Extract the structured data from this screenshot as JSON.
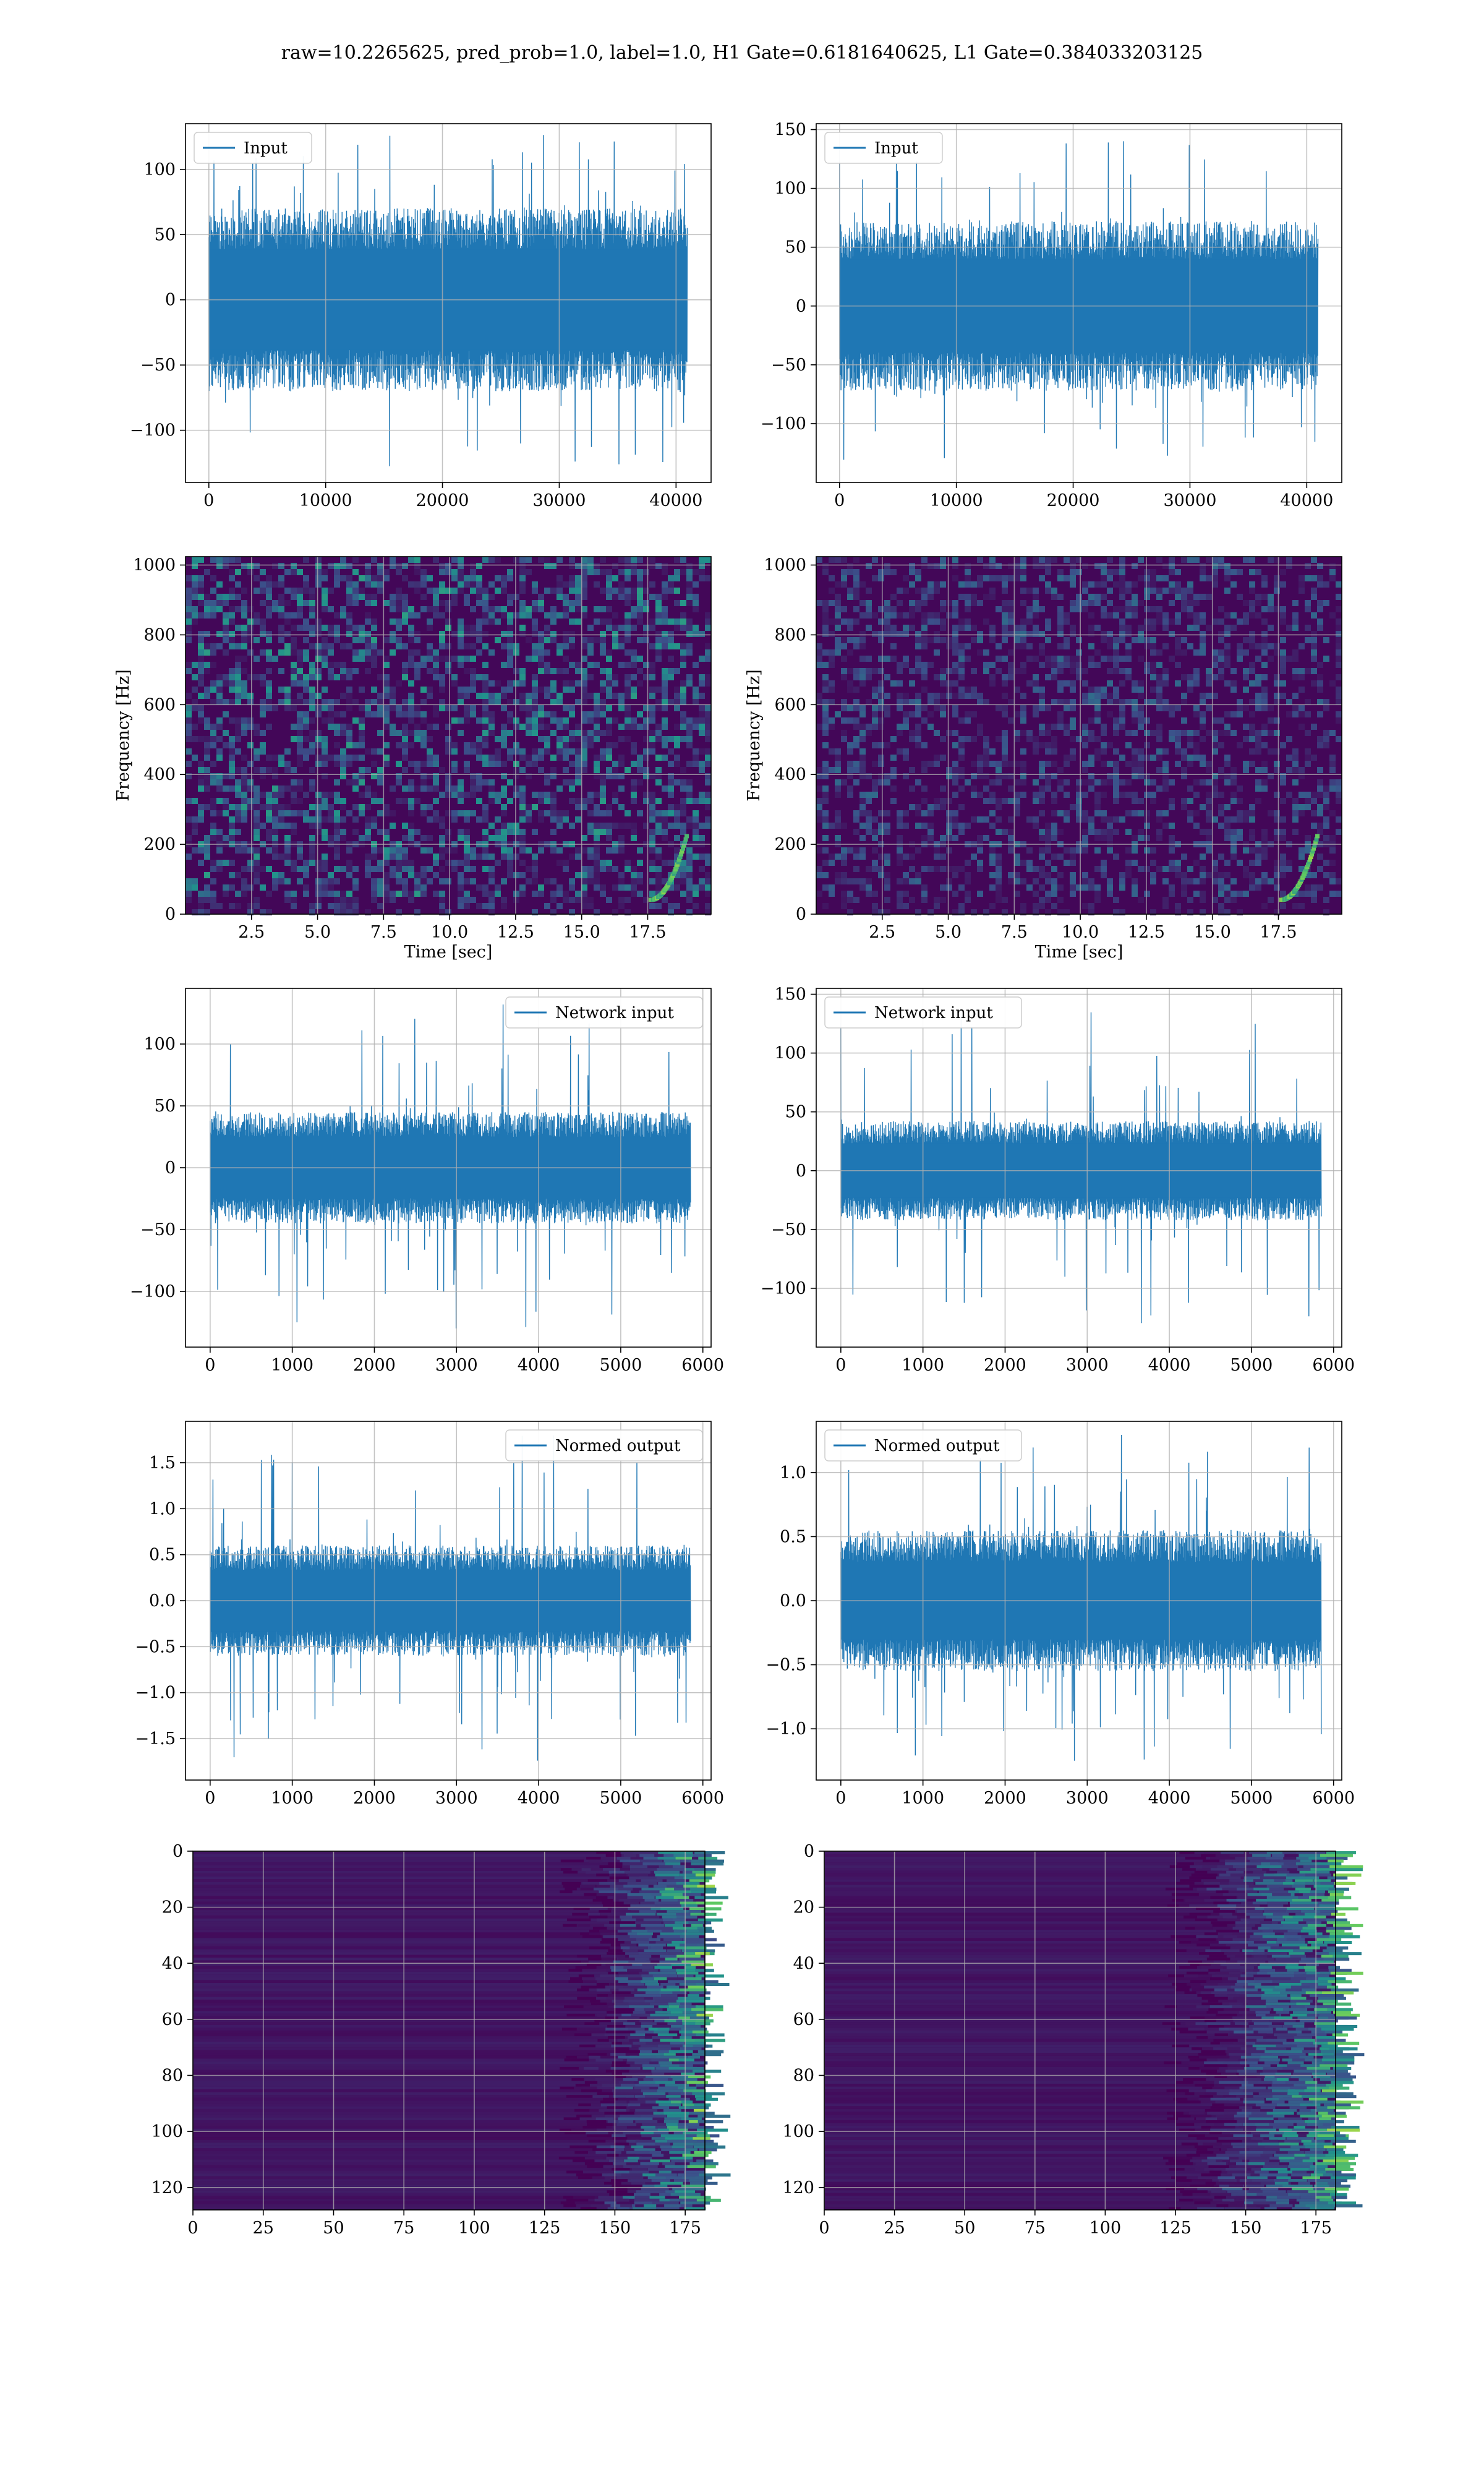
{
  "figure": {
    "suptitle": "raw=10.2265625, pred_prob=1.0, label=1.0, H1 Gate=0.6181640625, L1 Gate=0.384033203125"
  },
  "colors": {
    "line": "#1f77b4",
    "grid": "#b0b0b0",
    "viridis_low": "#440154",
    "viridis_high": "#fde725"
  },
  "chart_data": [
    {
      "id": "input-h1",
      "type": "line",
      "legend": "Input",
      "legend_loc": "upper left",
      "xlim": [
        -2000,
        43000
      ],
      "ylim": [
        -140,
        135
      ],
      "xticks": [
        0,
        10000,
        20000,
        30000,
        40000
      ],
      "xtick_labels": [
        "0",
        "10000",
        "20000",
        "30000",
        "40000"
      ],
      "yticks": [
        -100,
        -50,
        0,
        50,
        100
      ],
      "ytick_labels": [
        "−100",
        "−50",
        "0",
        "50",
        "100"
      ],
      "x_range": [
        0,
        40960
      ],
      "band": 70,
      "spike_max": 128,
      "spike_min": -128,
      "grid": true
    },
    {
      "id": "input-l1",
      "type": "line",
      "legend": "Input",
      "legend_loc": "upper left",
      "xlim": [
        -2000,
        43000
      ],
      "ylim": [
        -150,
        155
      ],
      "xticks": [
        0,
        10000,
        20000,
        30000,
        40000
      ],
      "xtick_labels": [
        "0",
        "10000",
        "20000",
        "30000",
        "40000"
      ],
      "yticks": [
        -100,
        -50,
        0,
        50,
        100,
        150
      ],
      "ytick_labels": [
        "−100",
        "−50",
        "0",
        "50",
        "100",
        "150"
      ],
      "x_range": [
        0,
        40960
      ],
      "band": 72,
      "spike_max": 142,
      "spike_min": -135,
      "grid": true
    },
    {
      "id": "spec-h1",
      "type": "heatmap",
      "xlabel": "Time [sec]",
      "ylabel": "Frequency [Hz]",
      "xlim": [
        0,
        19.9
      ],
      "ylim": [
        0,
        1024
      ],
      "xticks": [
        2.5,
        5.0,
        7.5,
        10.0,
        12.5,
        15.0,
        17.5
      ],
      "xtick_labels": [
        "2.5",
        "5.0",
        "7.5",
        "10.0",
        "12.5",
        "15.0",
        "17.5"
      ],
      "yticks": [
        0,
        200,
        400,
        600,
        800,
        1000
      ],
      "ytick_labels": [
        "0",
        "200",
        "400",
        "600",
        "800",
        "1000"
      ],
      "intensity": 0.55,
      "grid": true
    },
    {
      "id": "spec-l1",
      "type": "heatmap",
      "xlabel": "Time [sec]",
      "ylabel": "Frequency [Hz]",
      "xlim": [
        0,
        19.9
      ],
      "ylim": [
        0,
        1024
      ],
      "xticks": [
        2.5,
        5.0,
        7.5,
        10.0,
        12.5,
        15.0,
        17.5
      ],
      "xtick_labels": [
        "2.5",
        "5.0",
        "7.5",
        "10.0",
        "12.5",
        "15.0",
        "17.5"
      ],
      "yticks": [
        0,
        200,
        400,
        600,
        800,
        1000
      ],
      "ytick_labels": [
        "0",
        "200",
        "400",
        "600",
        "800",
        "1000"
      ],
      "intensity": 0.35,
      "grid": true
    },
    {
      "id": "netinput-h1",
      "type": "line",
      "legend": "Network input",
      "legend_loc": "upper right",
      "xlim": [
        -300,
        6100
      ],
      "ylim": [
        -145,
        145
      ],
      "xticks": [
        0,
        1000,
        2000,
        3000,
        4000,
        5000,
        6000
      ],
      "xtick_labels": [
        "0",
        "1000",
        "2000",
        "3000",
        "4000",
        "5000",
        "6000"
      ],
      "yticks": [
        -100,
        -50,
        0,
        50,
        100
      ],
      "ytick_labels": [
        "−100",
        "−50",
        "0",
        "50",
        "100"
      ],
      "x_range": [
        0,
        5850
      ],
      "band": 45,
      "spike_max": 135,
      "spike_min": -130,
      "grid": true
    },
    {
      "id": "netinput-l1",
      "type": "line",
      "legend": "Network input",
      "legend_loc": "upper left",
      "xlim": [
        -300,
        6100
      ],
      "ylim": [
        -150,
        155
      ],
      "xticks": [
        0,
        1000,
        2000,
        3000,
        4000,
        5000,
        6000
      ],
      "xtick_labels": [
        "0",
        "1000",
        "2000",
        "3000",
        "4000",
        "5000",
        "6000"
      ],
      "yticks": [
        -100,
        -50,
        0,
        50,
        100,
        150
      ],
      "ytick_labels": [
        "−100",
        "−50",
        "0",
        "50",
        "100",
        "150"
      ],
      "x_range": [
        0,
        5850
      ],
      "band": 42,
      "spike_max": 142,
      "spike_min": -132,
      "grid": true
    },
    {
      "id": "normed-h1",
      "type": "line",
      "legend": "Normed output",
      "legend_loc": "upper right",
      "xlim": [
        -300,
        6100
      ],
      "ylim": [
        -1.95,
        1.95
      ],
      "xticks": [
        0,
        1000,
        2000,
        3000,
        4000,
        5000,
        6000
      ],
      "xtick_labels": [
        "0",
        "1000",
        "2000",
        "3000",
        "4000",
        "5000",
        "6000"
      ],
      "yticks": [
        -1.5,
        -1.0,
        -0.5,
        0.0,
        0.5,
        1.0,
        1.5
      ],
      "ytick_labels": [
        "−1.5",
        "−1.0",
        "−0.5",
        "0.0",
        "0.5",
        "1.0",
        "1.5"
      ],
      "x_range": [
        0,
        5850
      ],
      "band": 0.6,
      "spike_max": 1.8,
      "spike_min": -1.75,
      "grid": true
    },
    {
      "id": "normed-l1",
      "type": "line",
      "legend": "Normed output",
      "legend_loc": "upper left",
      "xlim": [
        -300,
        6100
      ],
      "ylim": [
        -1.4,
        1.4
      ],
      "xticks": [
        0,
        1000,
        2000,
        3000,
        4000,
        5000,
        6000
      ],
      "xtick_labels": [
        "0",
        "1000",
        "2000",
        "3000",
        "4000",
        "5000",
        "6000"
      ],
      "yticks": [
        -1.0,
        -0.5,
        0.0,
        0.5,
        1.0
      ],
      "ytick_labels": [
        "−1.0",
        "−0.5",
        "0.0",
        "0.5",
        "1.0"
      ],
      "x_range": [
        0,
        5850
      ],
      "band": 0.55,
      "spike_max": 1.32,
      "spike_min": -1.25,
      "grid": true
    },
    {
      "id": "features-h1",
      "type": "heatmap",
      "origin": "upper",
      "xlim": [
        0,
        182
      ],
      "ylim": [
        128,
        0
      ],
      "xticks": [
        0,
        25,
        50,
        75,
        100,
        125,
        150,
        175
      ],
      "xtick_labels": [
        "0",
        "25",
        "50",
        "75",
        "100",
        "125",
        "150",
        "175"
      ],
      "yticks": [
        0,
        20,
        40,
        60,
        80,
        100,
        120
      ],
      "ytick_labels": [
        "0",
        "20",
        "40",
        "60",
        "80",
        "100",
        "120"
      ],
      "active_columns": [
        150,
        180
      ],
      "grid": true
    },
    {
      "id": "features-l1",
      "type": "heatmap",
      "origin": "upper",
      "xlim": [
        0,
        182
      ],
      "ylim": [
        128,
        0
      ],
      "xticks": [
        0,
        25,
        50,
        75,
        100,
        125,
        150,
        175
      ],
      "xtick_labels": [
        "0",
        "25",
        "50",
        "75",
        "100",
        "125",
        "150",
        "175"
      ],
      "yticks": [
        0,
        20,
        40,
        60,
        80,
        100,
        120
      ],
      "ytick_labels": [
        "0",
        "20",
        "40",
        "60",
        "80",
        "100",
        "120"
      ],
      "active_columns": [
        140,
        182
      ],
      "grid": true
    }
  ]
}
